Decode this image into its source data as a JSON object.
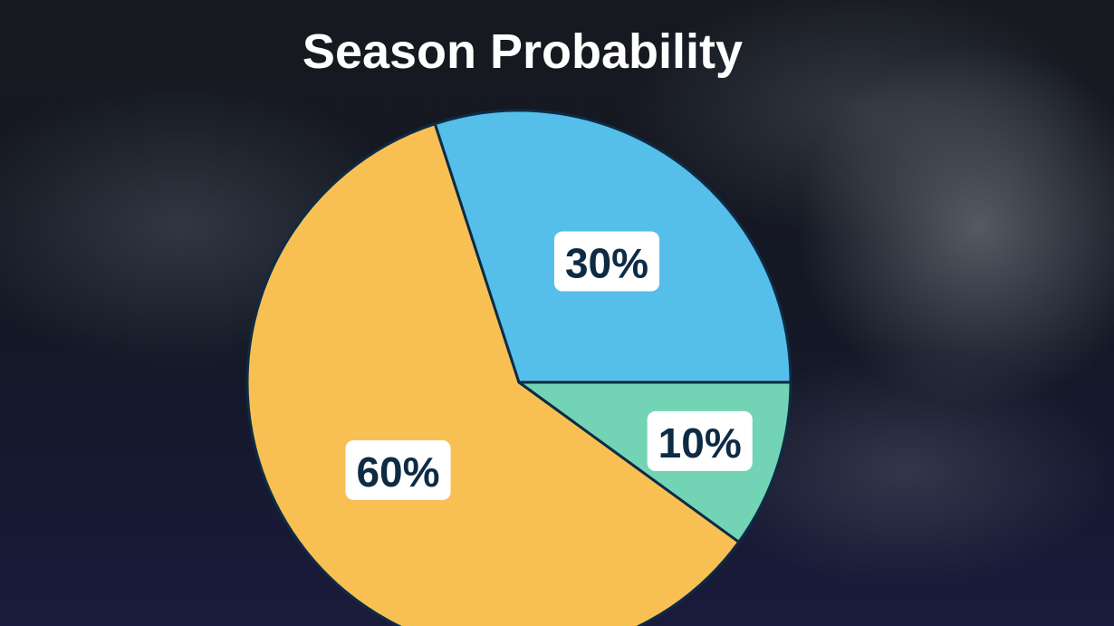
{
  "chart_data": {
    "type": "pie",
    "title": "Season Probability",
    "values": [
      10,
      60,
      30
    ],
    "value_labels": [
      "10%",
      "60%",
      "30%"
    ],
    "colors": [
      "#72d4b4",
      "#f8c053",
      "#55bfe9"
    ]
  }
}
